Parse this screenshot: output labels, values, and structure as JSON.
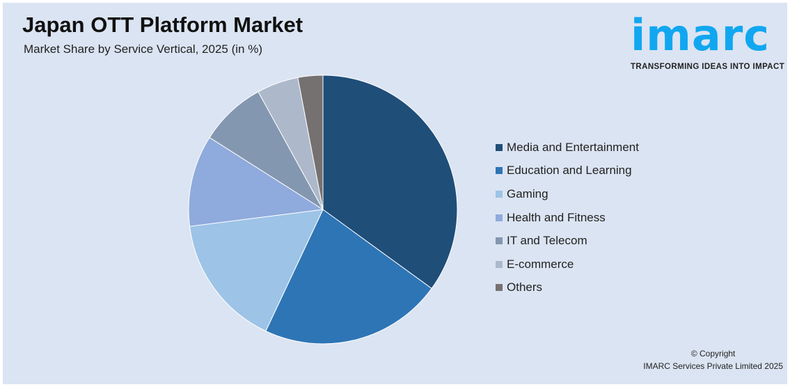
{
  "header": {
    "title": "Japan OTT Platform Market",
    "subtitle": "Market Share by Service Vertical, 2025 (in %)"
  },
  "logo": {
    "word": "imarc",
    "tagline": "TRANSFORMING IDEAS INTO IMPACT"
  },
  "footer": {
    "copyright": "© Copyright",
    "company": "IMARC Services Private Limited 2025"
  },
  "chart_data": {
    "type": "pie",
    "title": "Japan OTT Platform Market",
    "subtitle": "Market Share by Service Vertical, 2025 (in %)",
    "legend_position": "right",
    "categories": [
      "Media and Entertainment",
      "Education and Learning",
      "Gaming",
      "Health and Fitness",
      "IT and Telecom",
      "E-commerce",
      "Others"
    ],
    "values": [
      35,
      22,
      16,
      11,
      8,
      5,
      3
    ],
    "colors": [
      "#1f4e79",
      "#2e75b6",
      "#9dc3e6",
      "#8faadc",
      "#8497b0",
      "#adb9ca",
      "#767171"
    ]
  }
}
